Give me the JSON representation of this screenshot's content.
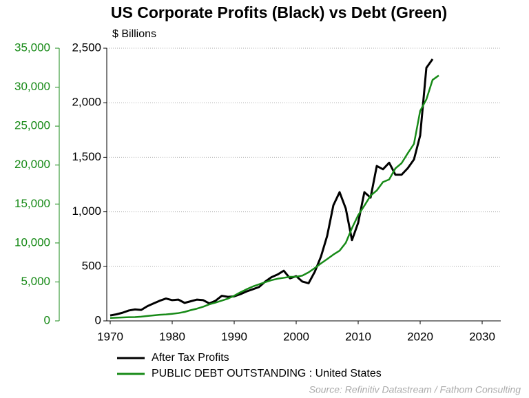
{
  "chart_data": {
    "type": "line",
    "title": "US Corporate Profits (Black) vs Debt (Green)",
    "subtitle": "$ Billions",
    "source": "Source: Refinitiv Datastream / Fathom Consulting",
    "x": [
      1970,
      1971,
      1972,
      1973,
      1974,
      1975,
      1976,
      1977,
      1978,
      1979,
      1980,
      1981,
      1982,
      1983,
      1984,
      1985,
      1986,
      1987,
      1988,
      1989,
      1990,
      1991,
      1992,
      1993,
      1994,
      1995,
      1996,
      1997,
      1998,
      1999,
      2000,
      2001,
      2002,
      2003,
      2004,
      2005,
      2006,
      2007,
      2008,
      2009,
      2010,
      2011,
      2012,
      2013,
      2014,
      2015,
      2016,
      2017,
      2018,
      2019,
      2020,
      2021,
      2022,
      2023
    ],
    "series": [
      {
        "name": "After Tax Profits",
        "color": "#000000",
        "values": [
          50,
          60,
          75,
          95,
          105,
          100,
          135,
          160,
          185,
          205,
          190,
          195,
          165,
          180,
          195,
          190,
          160,
          185,
          230,
          220,
          225,
          245,
          270,
          290,
          310,
          360,
          400,
          425,
          460,
          390,
          410,
          360,
          345,
          450,
          590,
          780,
          1060,
          1180,
          1030,
          740,
          900,
          1180,
          1130,
          1420,
          1390,
          1450,
          1340,
          1340,
          1400,
          1480,
          1700,
          2320,
          2400,
          null
        ]
      },
      {
        "name": "PUBLIC DEBT OUTSTANDING : United States",
        "color": "#178a17",
        "axis": "y2",
        "values": [
          380,
          410,
          440,
          470,
          490,
          540,
          630,
          710,
          780,
          830,
          910,
          1000,
          1150,
          1380,
          1570,
          1820,
          2130,
          2350,
          2600,
          2860,
          3230,
          3670,
          4060,
          4410,
          4690,
          4970,
          5220,
          5410,
          5530,
          5660,
          5670,
          5810,
          6230,
          6780,
          7380,
          7930,
          8510,
          9010,
          10020,
          11910,
          13560,
          14790,
          16070,
          16740,
          17820,
          18150,
          19570,
          20240,
          21520,
          22720,
          26950,
          28430,
          30930,
          31500
        ]
      }
    ],
    "xlim": [
      1970,
      2033
    ],
    "xticks": [
      1970,
      1980,
      1990,
      2000,
      2010,
      2020,
      2030
    ],
    "ylim": [
      0,
      2500
    ],
    "yticks": [
      0,
      500,
      {
        "value": 1000,
        "label": "1,000"
      },
      {
        "value": 1500,
        "label": "1,500"
      },
      {
        "value": 2000,
        "label": "2,000"
      },
      {
        "value": 2500,
        "label": "2,500"
      }
    ],
    "y2lim": [
      0,
      35000
    ],
    "y2ticks": [
      0,
      {
        "value": 5000,
        "label": "5,000"
      },
      {
        "value": 10000,
        "label": "10,000"
      },
      {
        "value": 15000,
        "label": "15,000"
      },
      {
        "value": 20000,
        "label": "20,000"
      },
      {
        "value": 25000,
        "label": "25,000"
      },
      {
        "value": 30000,
        "label": "30,000"
      },
      {
        "value": 35000,
        "label": "35,000"
      }
    ],
    "y2color": "#178a17",
    "grid": true
  }
}
